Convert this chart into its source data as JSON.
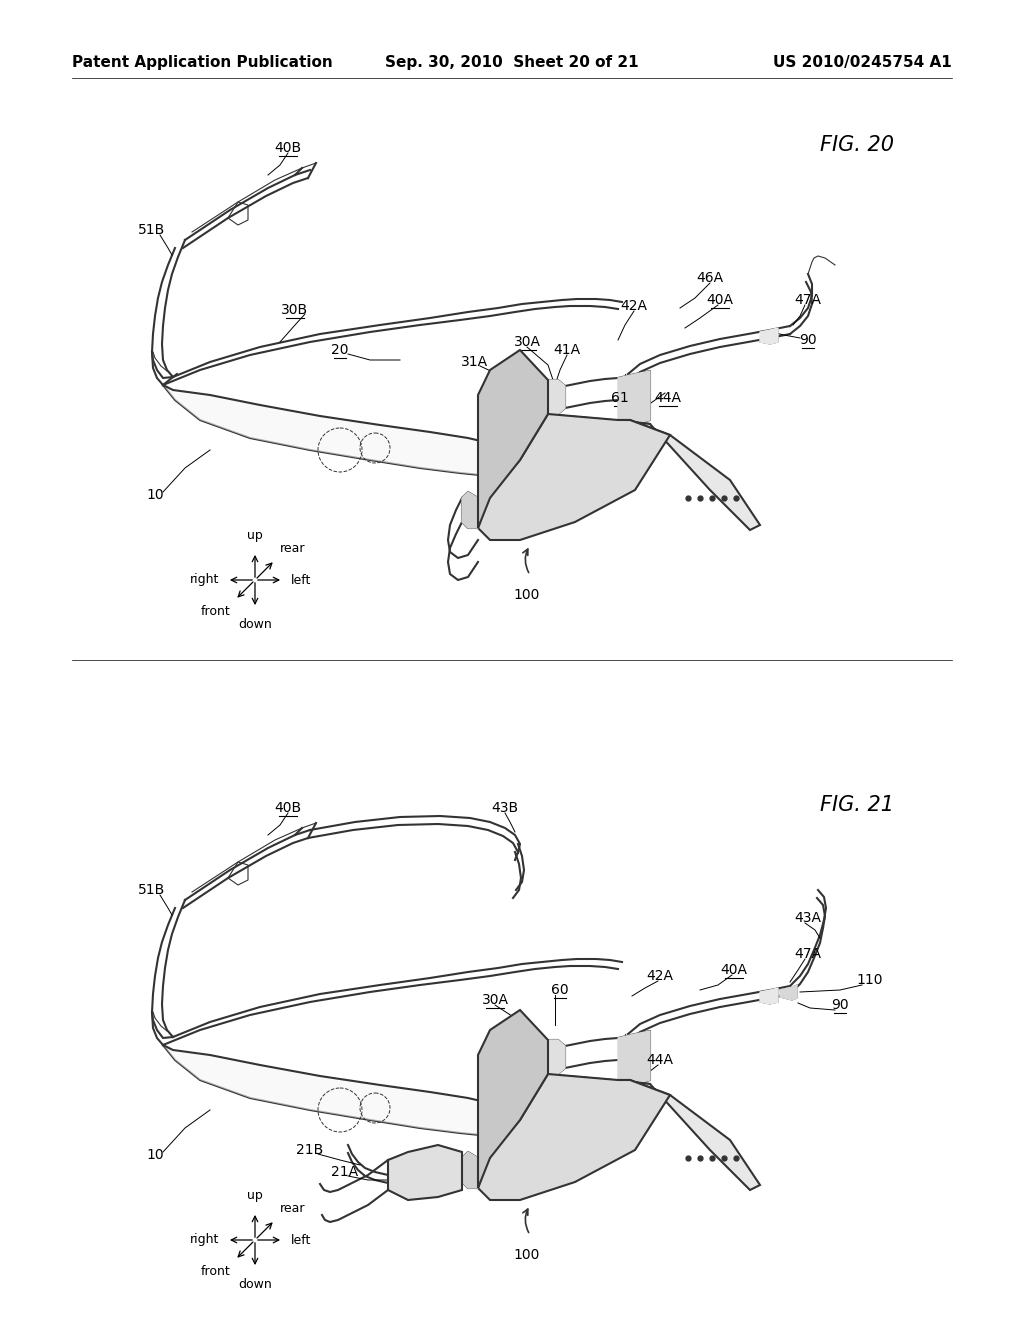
{
  "background_color": "#ffffff",
  "header_left": "Patent Application Publication",
  "header_center": "Sep. 30, 2010  Sheet 20 of 21",
  "header_right": "US 2010/0245754 A1",
  "header_fontsize": 11,
  "fig20_title": "FIG. 20",
  "fig21_title": "FIG. 21",
  "label_fontsize": 10,
  "compass_fontsize": 9,
  "title_fontsize": 15
}
